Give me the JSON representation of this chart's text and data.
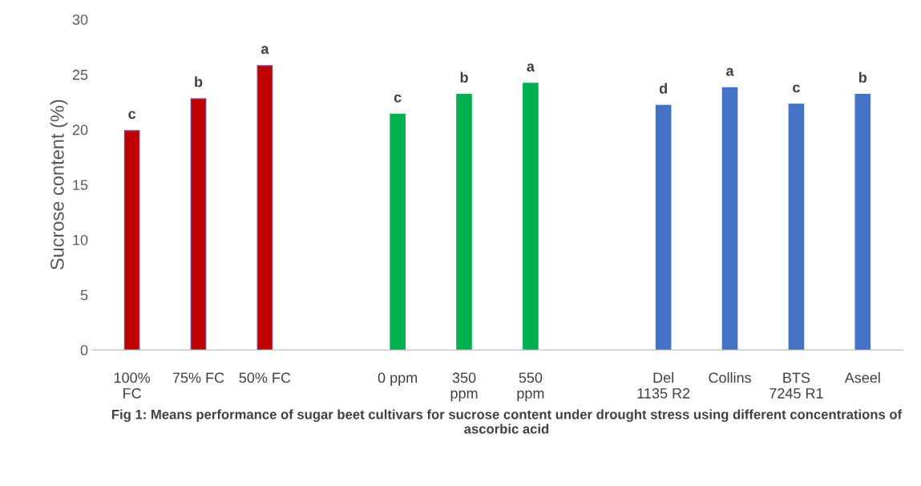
{
  "chart_data": {
    "type": "bar",
    "ylabel": "Sucrose content (%)",
    "categories": [
      "100%\nFC",
      "75% FC",
      "50% FC",
      null,
      "0 ppm",
      "350\nppm",
      "550\nppm",
      null,
      "Del\n1135 R2",
      "Collins",
      "BTS\n7245 R1",
      "Aseel"
    ],
    "values": [
      19.9,
      22.8,
      25.8,
      null,
      21.4,
      23.2,
      24.2,
      null,
      22.2,
      23.8,
      22.3,
      23.2
    ],
    "colors": [
      "#c00000",
      "#c00000",
      "#c00000",
      null,
      "#00b050",
      "#00b050",
      "#00b050",
      null,
      "#4472c4",
      "#4472c4",
      "#4472c4",
      "#4472c4"
    ],
    "value_labels": [
      "c",
      "b",
      "a",
      null,
      "c",
      "b",
      "a",
      null,
      "d",
      "a",
      "c",
      "b"
    ],
    "ylim": [
      0,
      30
    ],
    "yticks": [
      0,
      5,
      10,
      15,
      20,
      25,
      30
    ],
    "grid": false,
    "annotations": [
      "Fig 1: Means performance of sugar beet cultivars for sucrose content under drought stress using different concentrations of ascorbic acid"
    ]
  }
}
